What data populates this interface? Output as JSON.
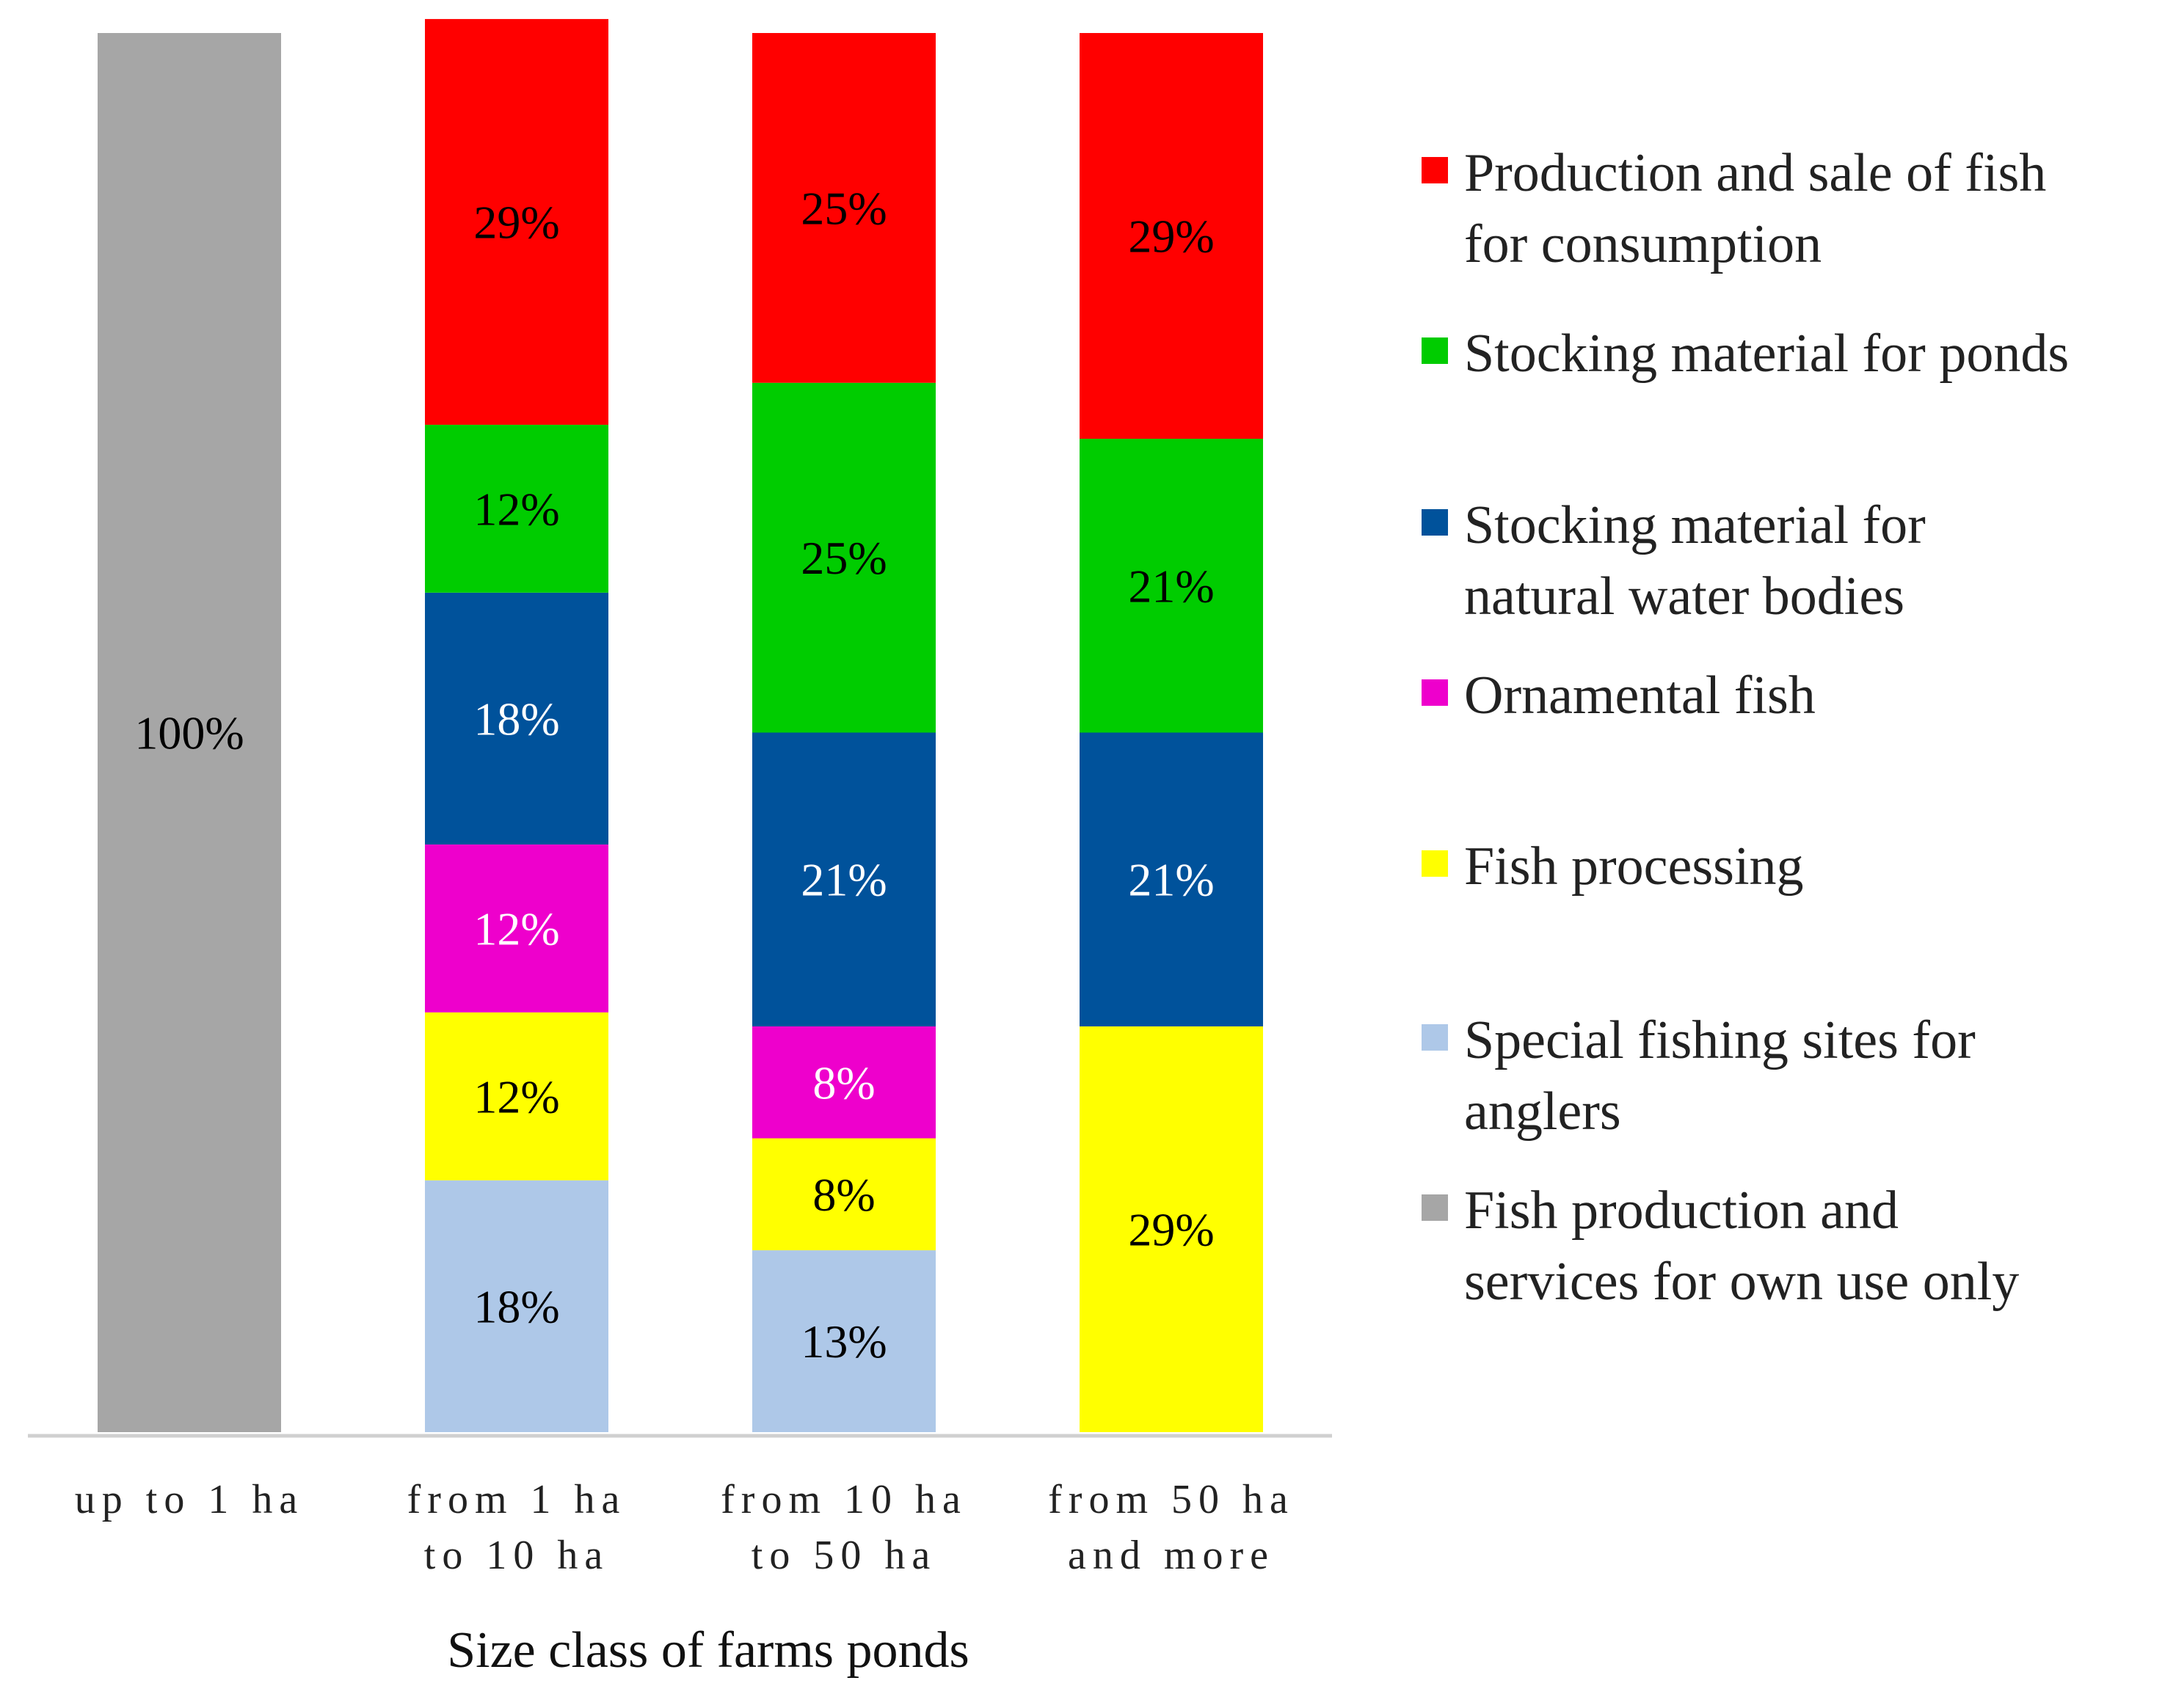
{
  "chart_data": {
    "type": "stacked-bar",
    "title": "",
    "xlabel": "Size class of farms ponds",
    "ylabel": "",
    "ylim": [
      0,
      100
    ],
    "grid": false,
    "legend_position": "right",
    "categories": [
      [
        "up to 1 ha"
      ],
      [
        "from 1 ha",
        "to 10 ha"
      ],
      [
        "from 10 ha",
        "to 50 ha"
      ],
      [
        "from 50 ha",
        "and more"
      ]
    ],
    "series": [
      {
        "name": "Production and sale of fish for consumption",
        "legend_lines": [
          "Production and sale of fish",
          "for consumption"
        ],
        "color": "#FF0000",
        "label_color": "#000000",
        "values": [
          0,
          29,
          25,
          29
        ]
      },
      {
        "name": "Stocking material for ponds",
        "legend_lines": [
          "Stocking material for ponds"
        ],
        "color": "#00CC00",
        "label_color": "#000000",
        "values": [
          0,
          12,
          25,
          21
        ]
      },
      {
        "name": "Stocking material for natural water bodies",
        "legend_lines": [
          "Stocking material for",
          "natural water bodies"
        ],
        "color": "#00529B",
        "label_color": "#FFFFFF",
        "values": [
          0,
          18,
          21,
          21
        ]
      },
      {
        "name": "Ornamental fish",
        "legend_lines": [
          "Ornamental fish"
        ],
        "color": "#EE00CC",
        "label_color": "#FFFFFF",
        "values": [
          0,
          12,
          8,
          0
        ]
      },
      {
        "name": "Fish processing",
        "legend_lines": [
          "Fish processing"
        ],
        "color": "#FFFF00",
        "label_color": "#000000",
        "values": [
          0,
          12,
          8,
          29
        ]
      },
      {
        "name": "Special fishing sites for anglers",
        "legend_lines": [
          "Special fishing sites for",
          "anglers"
        ],
        "color": "#AEC8E8",
        "label_color": "#000000",
        "values": [
          0,
          18,
          13,
          0
        ]
      },
      {
        "name": "Fish production and services for own use only",
        "legend_lines": [
          "Fish production and",
          "services for own use only"
        ],
        "color": "#A6A6A6",
        "label_color": "#000000",
        "values": [
          100,
          0,
          0,
          0
        ]
      }
    ]
  }
}
